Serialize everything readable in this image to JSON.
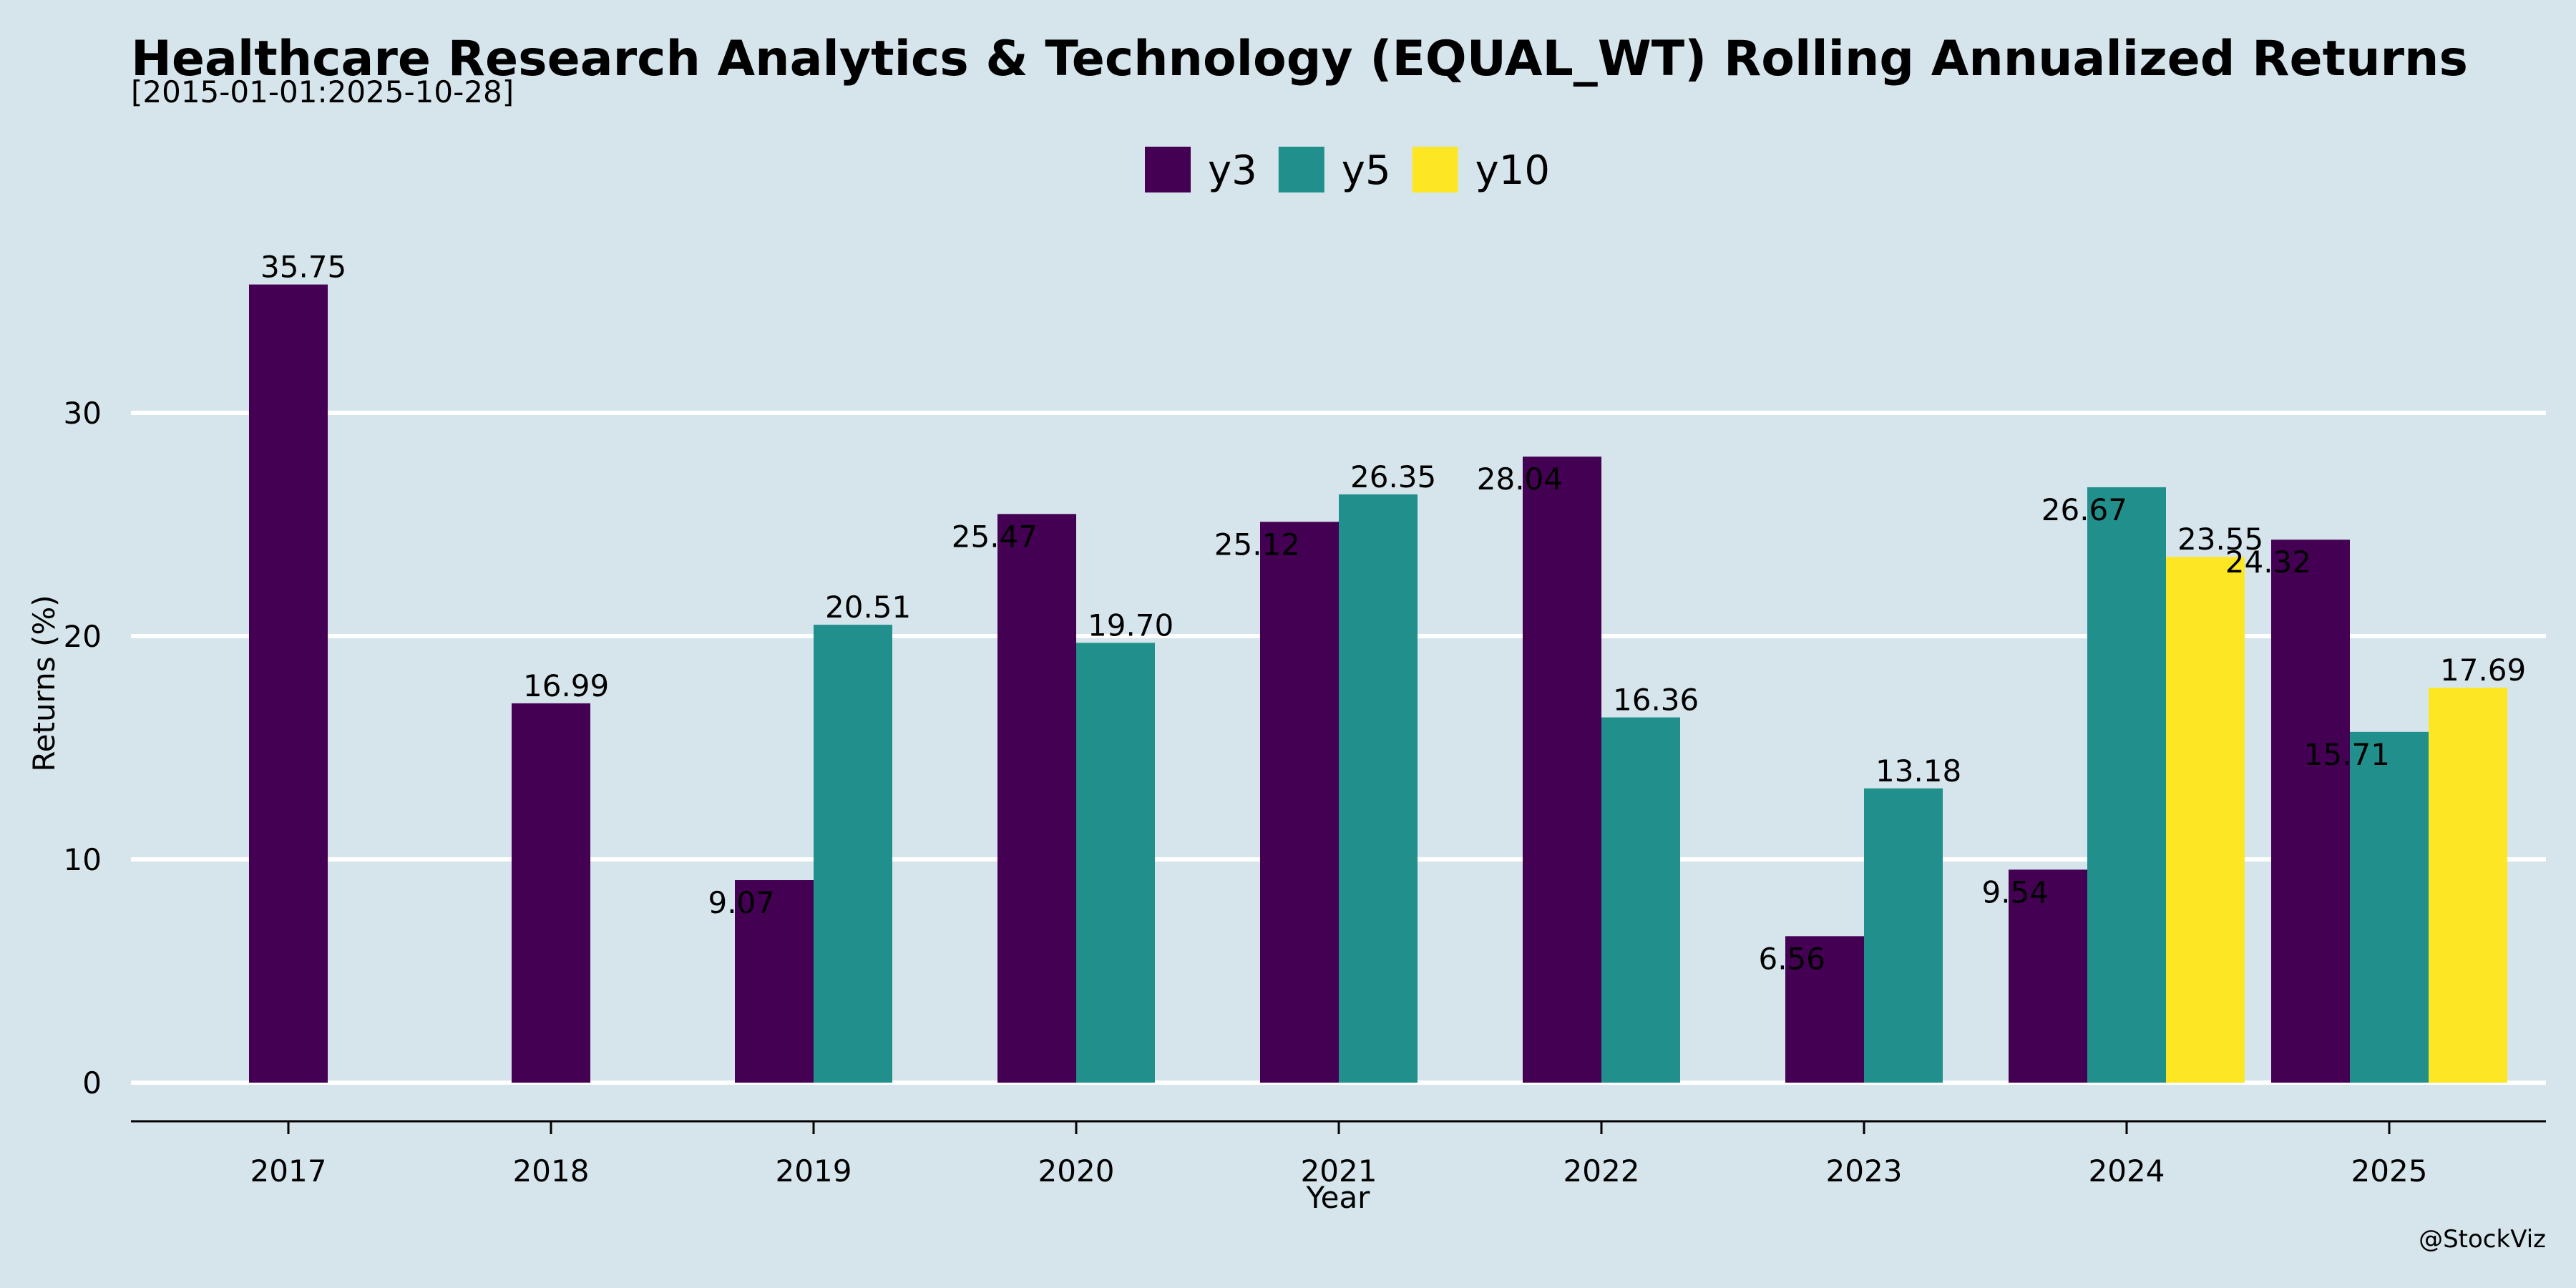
{
  "chart_data": {
    "type": "bar",
    "title": "Healthcare Research Analytics & Technology (EQUAL_WT) Rolling Annualized Returns",
    "subtitle": "[2015-01-01:2025-10-28]",
    "xlabel": "Year",
    "ylabel": "Returns (%)",
    "ylim": [
      -1.8,
      38
    ],
    "yticks": [
      0,
      10,
      20,
      30
    ],
    "grid": true,
    "legend_position": "top-center",
    "categories": [
      "2017",
      "2018",
      "2019",
      "2020",
      "2021",
      "2022",
      "2023",
      "2024",
      "2025"
    ],
    "series": [
      {
        "name": "y3",
        "color": "#440154",
        "values": [
          35.75,
          16.99,
          9.07,
          25.47,
          25.12,
          28.04,
          6.56,
          9.54,
          24.32
        ],
        "labels": [
          "35.75",
          "16.99",
          "9.07",
          "25.47",
          "25.12",
          "28.04",
          "6.56",
          "9.54",
          "24.32"
        ]
      },
      {
        "name": "y5",
        "color": "#21908d",
        "values": [
          null,
          null,
          20.51,
          19.7,
          26.35,
          16.36,
          13.18,
          26.67,
          15.71
        ],
        "labels": [
          null,
          null,
          "20.51",
          "19.70",
          "26.35",
          "16.36",
          "13.18",
          "26.67",
          "15.71"
        ]
      },
      {
        "name": "y10",
        "color": "#fde725",
        "values": [
          null,
          null,
          null,
          null,
          null,
          null,
          null,
          23.55,
          17.69
        ],
        "labels": [
          null,
          null,
          null,
          null,
          null,
          null,
          null,
          "23.55",
          "17.69"
        ]
      }
    ],
    "credit": "@StockViz"
  }
}
